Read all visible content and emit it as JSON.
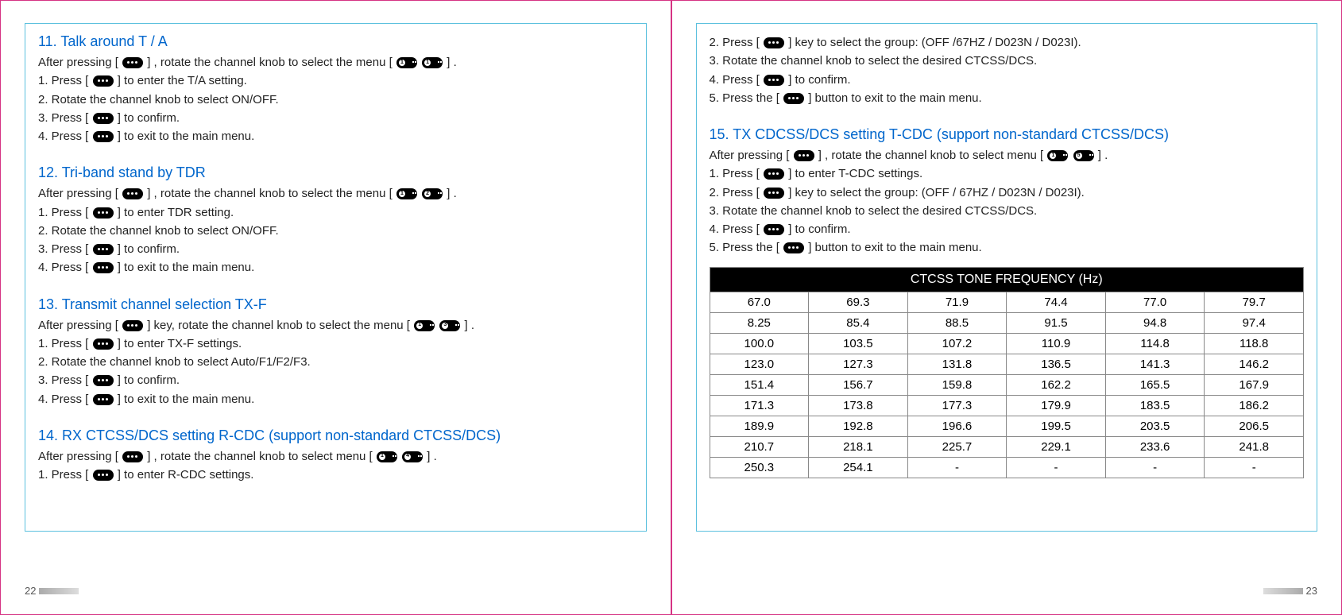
{
  "pages": {
    "left_num": "22",
    "right_num": "23"
  },
  "left": {
    "sections": [
      {
        "title": "11. Talk around T / A",
        "lines": [
          {
            "parts": [
              "After pressing [ ",
              {
                "icon": "menu"
              },
              " ] , rotate the channel knob to select the menu [ ",
              {
                "num": "1"
              },
              " ",
              {
                "num": "1"
              },
              " ] ."
            ]
          },
          {
            "parts": [
              "1. Press [ ",
              {
                "icon": "menu"
              },
              " ] to enter the T/A setting."
            ]
          },
          {
            "parts": [
              "2. Rotate the channel knob to select ON/OFF."
            ]
          },
          {
            "parts": [
              "3. Press [ ",
              {
                "icon": "menu"
              },
              " ] to confirm."
            ]
          },
          {
            "parts": [
              "4. Press [ ",
              {
                "icon": "menu"
              },
              " ] to exit to the main menu."
            ]
          }
        ]
      },
      {
        "title": "12. Tri-band stand by TDR",
        "lines": [
          {
            "parts": [
              "After pressing [ ",
              {
                "icon": "menu"
              },
              " ] , rotate the channel knob to select the menu [ ",
              {
                "num": "1"
              },
              " ",
              {
                "num": "2"
              },
              " ] ."
            ]
          },
          {
            "parts": [
              "1. Press [ ",
              {
                "icon": "menu"
              },
              " ]  to enter TDR setting."
            ]
          },
          {
            "parts": [
              "2. Rotate the channel knob to select ON/OFF."
            ]
          },
          {
            "parts": [
              "3. Press [ ",
              {
                "icon": "menu"
              },
              " ] to confirm."
            ]
          },
          {
            "parts": [
              "4. Press [ ",
              {
                "icon": "menu"
              },
              " ] to exit to the main menu."
            ]
          }
        ]
      },
      {
        "title": "13. Transmit channel selection TX-F",
        "lines": [
          {
            "parts": [
              "After pressing [ ",
              {
                "icon": "menu"
              },
              " ] key, rotate the channel knob to select the menu [ ",
              {
                "num": "1"
              },
              " ",
              {
                "num": "3"
              },
              " ] ."
            ]
          },
          {
            "parts": [
              "1. Press [ ",
              {
                "icon": "menu"
              },
              " ] to enter TX-F settings."
            ]
          },
          {
            "parts": [
              "2. Rotate the channel knob to select Auto/F1/F2/F3."
            ]
          },
          {
            "parts": [
              "3. Press [ ",
              {
                "icon": "menu"
              },
              " ] to confirm."
            ]
          },
          {
            "parts": [
              "4. Press [ ",
              {
                "icon": "menu"
              },
              " ] to exit to the main menu."
            ]
          }
        ]
      },
      {
        "title": "14. RX CTCSS/DCS setting R-CDC (support non-standard CTCSS/DCS)",
        "lines": [
          {
            "parts": [
              "After pressing [ ",
              {
                "icon": "menu"
              },
              " ] , rotate the channel knob to select menu [ ",
              {
                "num": "1"
              },
              " ",
              {
                "num": "4"
              },
              " ] ."
            ]
          },
          {
            "parts": [
              "1. Press [ ",
              {
                "icon": "menu"
              },
              " ] to enter R-CDC settings."
            ]
          }
        ]
      }
    ]
  },
  "right": {
    "cont_lines": [
      {
        "parts": [
          "2. Press [ ",
          {
            "icon": "menu"
          },
          " ] key to select the group: (OFF /67HZ / D023N / D023I)."
        ]
      },
      {
        "parts": [
          "3. Rotate the channel knob to select the desired CTCSS/DCS."
        ]
      },
      {
        "parts": [
          "4. Press [ ",
          {
            "icon": "menu"
          },
          " ] to confirm."
        ]
      },
      {
        "parts": [
          "5. Press the [ ",
          {
            "icon": "menu"
          },
          " ] button to exit to the main menu."
        ]
      }
    ],
    "section15": {
      "title": "15. TX CDCSS/DCS setting T-CDC (support non-standard CTCSS/DCS)",
      "lines": [
        {
          "parts": [
            "After pressing [ ",
            {
              "icon": "menu"
            },
            " ] , rotate the channel knob to select menu [ ",
            {
              "num": "1"
            },
            " ",
            {
              "num": "5"
            },
            " ] ."
          ]
        },
        {
          "parts": [
            "1. Press [ ",
            {
              "icon": "menu"
            },
            " ] to enter T-CDC settings."
          ]
        },
        {
          "parts": [
            "2. Press [ ",
            {
              "icon": "menu"
            },
            " ] key to select the group: (OFF / 67HZ / D023N / D023I)."
          ]
        },
        {
          "parts": [
            "3. Rotate the channel knob to select the desired CTCSS/DCS."
          ]
        },
        {
          "parts": [
            "4. Press [ ",
            {
              "icon": "menu"
            },
            " ] to confirm."
          ]
        },
        {
          "parts": [
            "5. Press the [ ",
            {
              "icon": "menu"
            },
            " ] button to exit to the main menu."
          ]
        }
      ]
    },
    "table": {
      "title": "CTCSS TONE FREQUENCY (Hz)",
      "rows": [
        [
          "67.0",
          "69.3",
          "71.9",
          "74.4",
          "77.0",
          "79.7"
        ],
        [
          "8.25",
          "85.4",
          "88.5",
          "91.5",
          "94.8",
          "97.4"
        ],
        [
          "100.0",
          "103.5",
          "107.2",
          "110.9",
          "114.8",
          "118.8"
        ],
        [
          "123.0",
          "127.3",
          "131.8",
          "136.5",
          "141.3",
          "146.2"
        ],
        [
          "151.4",
          "156.7",
          "159.8",
          "162.2",
          "165.5",
          "167.9"
        ],
        [
          "171.3",
          "173.8",
          "177.3",
          "179.9",
          "183.5",
          "186.2"
        ],
        [
          "189.9",
          "192.8",
          "196.6",
          "199.5",
          "203.5",
          "206.5"
        ],
        [
          "210.7",
          "218.1",
          "225.7",
          "229.1",
          "233.6",
          "241.8"
        ],
        [
          "250.3",
          "254.1",
          "-",
          "-",
          "-",
          "-"
        ]
      ]
    }
  },
  "styling": {
    "page_border_color": "#d63384",
    "content_border_color": "#5bc0de",
    "title_color": "#0066cc",
    "body_text_color": "#222",
    "table_header_bg": "#000000",
    "table_header_fg": "#ffffff",
    "table_border": "#888888",
    "body_font_size": 15,
    "title_font_size": 18
  }
}
